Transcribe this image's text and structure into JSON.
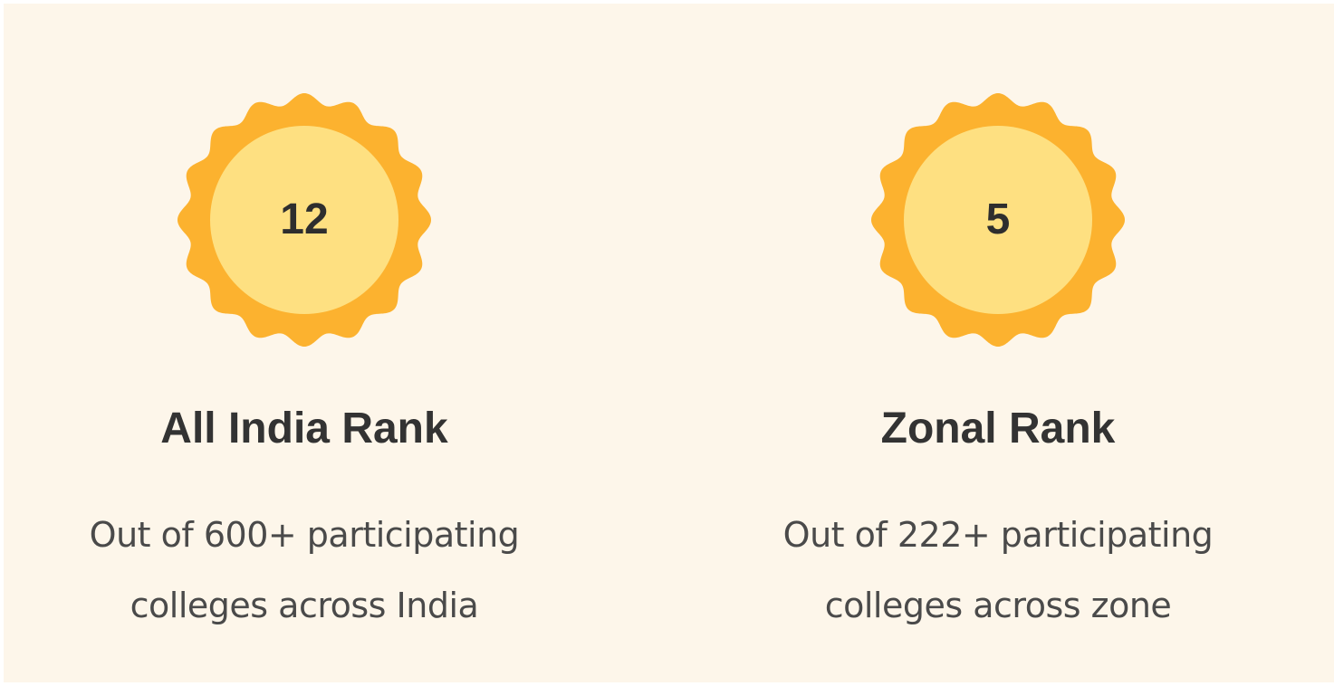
{
  "colors": {
    "background": "#fdf6ea",
    "badge_outer": "#fcb22f",
    "badge_inner": "#fee081",
    "text_dark": "#333333",
    "text_body": "#4a4a4a"
  },
  "ranks": [
    {
      "value": "12",
      "title": "All India Rank",
      "description_line1": "Out of 600+ participating",
      "description_line2": "colleges across India",
      "icon": "scalloped-badge-icon"
    },
    {
      "value": "5",
      "title": "Zonal Rank",
      "description_line1": "Out of 222+ participating",
      "description_line2": "colleges across zone",
      "icon": "scalloped-badge-icon"
    }
  ]
}
